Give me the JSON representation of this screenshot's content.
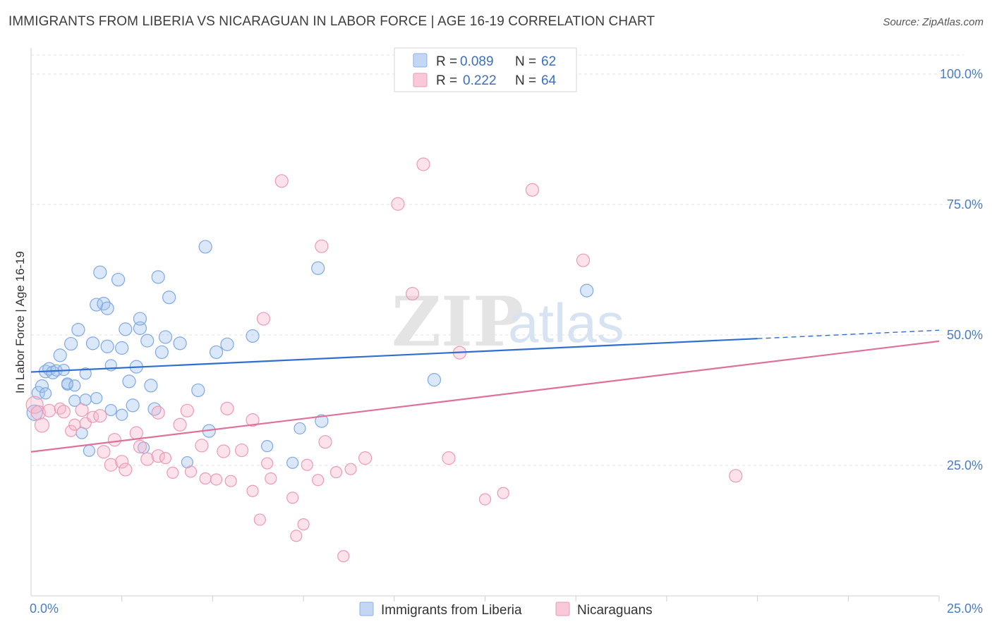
{
  "header": {
    "title": "IMMIGRANTS FROM LIBERIA VS NICARAGUAN IN LABOR FORCE | AGE 16-19 CORRELATION CHART",
    "source": "Source: ZipAtlas.com"
  },
  "watermark": {
    "zip": "ZIP",
    "atlas": "atlas"
  },
  "chart_data": {
    "type": "scatter",
    "title": "IMMIGRANTS FROM LIBERIA VS NICARAGUAN IN LABOR FORCE | AGE 16-19 CORRELATION CHART",
    "xlabel": "",
    "ylabel": "In Labor Force | Age 16-19",
    "xlim": [
      0,
      25
    ],
    "ylim": [
      0,
      105
    ],
    "x_tick_labels": [
      "0.0%",
      "25.0%"
    ],
    "y_ticks": [
      25,
      50,
      75,
      100
    ],
    "y_tick_labels": [
      "25.0%",
      "50.0%",
      "75.0%",
      "100.0%"
    ],
    "grid": true,
    "legend_position": "top-center",
    "colors": {
      "liberia": "#6b9be0",
      "nicaraguan": "#ea8fab",
      "liberia_line": "#2f6fd0",
      "nicaraguan_line": "#e0709a"
    },
    "stats": [
      {
        "r_label": "R =",
        "r_value": "0.089",
        "n_label": "N =",
        "n_value": "62"
      },
      {
        "r_label": "R =",
        "r_value": "0.222",
        "n_label": "N =",
        "n_value": "64"
      }
    ],
    "series": [
      {
        "name": "Immigrants from Liberia",
        "trend": {
          "x0": 0,
          "y0": 42.9,
          "x1": 20,
          "y1": 49.3,
          "x_dash_end": 25,
          "y_dash_end": 50.9
        },
        "points": [
          [
            0.1,
            35.1,
            11
          ],
          [
            0.2,
            38.9,
            9
          ],
          [
            0.3,
            40.2,
            9
          ],
          [
            0.4,
            38.8,
            8
          ],
          [
            0.4,
            43.0,
            9
          ],
          [
            0.5,
            43.5,
            9
          ],
          [
            0.6,
            42.8,
            9
          ],
          [
            0.7,
            43.2,
            8
          ],
          [
            0.8,
            46.1,
            9
          ],
          [
            0.9,
            43.3,
            8
          ],
          [
            1.0,
            40.5,
            8
          ],
          [
            1.0,
            40.7,
            8
          ],
          [
            1.1,
            48.3,
            9
          ],
          [
            1.2,
            40.3,
            8
          ],
          [
            1.2,
            37.4,
            8
          ],
          [
            1.3,
            51.0,
            9
          ],
          [
            1.4,
            31.2,
            8
          ],
          [
            1.5,
            42.6,
            8
          ],
          [
            1.5,
            37.6,
            8
          ],
          [
            1.6,
            27.8,
            8
          ],
          [
            1.7,
            48.4,
            9
          ],
          [
            1.8,
            37.9,
            8
          ],
          [
            1.8,
            55.8,
            9
          ],
          [
            1.9,
            62.0,
            9
          ],
          [
            2.0,
            56.0,
            9
          ],
          [
            2.1,
            55.1,
            9
          ],
          [
            2.1,
            47.8,
            9
          ],
          [
            2.2,
            35.6,
            8
          ],
          [
            2.2,
            44.2,
            8
          ],
          [
            2.4,
            60.6,
            9
          ],
          [
            2.5,
            34.7,
            8
          ],
          [
            2.5,
            47.5,
            9
          ],
          [
            2.6,
            51.1,
            9
          ],
          [
            2.7,
            41.1,
            9
          ],
          [
            2.8,
            36.5,
            9
          ],
          [
            2.9,
            43.9,
            9
          ],
          [
            3.0,
            51.3,
            9
          ],
          [
            3.0,
            53.1,
            9
          ],
          [
            3.1,
            28.4,
            8
          ],
          [
            3.2,
            48.9,
            9
          ],
          [
            3.3,
            40.3,
            9
          ],
          [
            3.4,
            35.8,
            9
          ],
          [
            3.5,
            61.1,
            9
          ],
          [
            3.6,
            46.7,
            9
          ],
          [
            3.7,
            49.6,
            9
          ],
          [
            3.8,
            57.2,
            9
          ],
          [
            4.1,
            48.4,
            9
          ],
          [
            4.3,
            25.6,
            8
          ],
          [
            4.6,
            39.4,
            9
          ],
          [
            4.8,
            66.9,
            9
          ],
          [
            4.9,
            31.6,
            9
          ],
          [
            5.1,
            46.7,
            9
          ],
          [
            5.4,
            48.2,
            9
          ],
          [
            6.1,
            49.8,
            9
          ],
          [
            6.5,
            28.7,
            8
          ],
          [
            7.2,
            25.5,
            8
          ],
          [
            7.4,
            32.1,
            8
          ],
          [
            7.9,
            62.8,
            9
          ],
          [
            8.0,
            33.5,
            9
          ],
          [
            11.1,
            41.4,
            9
          ],
          [
            15.3,
            58.5,
            9
          ]
        ]
      },
      {
        "name": "Nicaraguans",
        "trend": {
          "x0": 0,
          "y0": 27.6,
          "x1": 25,
          "y1": 48.8
        },
        "points": [
          [
            0.1,
            36.6,
            12
          ],
          [
            0.2,
            35.1,
            10
          ],
          [
            0.3,
            32.7,
            10
          ],
          [
            0.5,
            35.5,
            9
          ],
          [
            0.8,
            35.9,
            8
          ],
          [
            0.9,
            35.3,
            9
          ],
          [
            1.1,
            31.6,
            8
          ],
          [
            1.2,
            32.8,
            8
          ],
          [
            1.4,
            35.6,
            9
          ],
          [
            1.5,
            33.1,
            8
          ],
          [
            1.7,
            34.3,
            8
          ],
          [
            1.9,
            34.5,
            9
          ],
          [
            2.0,
            27.6,
            9
          ],
          [
            2.2,
            25.1,
            9
          ],
          [
            2.3,
            29.9,
            9
          ],
          [
            2.5,
            25.7,
            9
          ],
          [
            2.6,
            24.2,
            9
          ],
          [
            2.9,
            31.2,
            9
          ],
          [
            3.0,
            28.6,
            9
          ],
          [
            3.2,
            26.2,
            9
          ],
          [
            3.5,
            26.8,
            9
          ],
          [
            3.5,
            35.1,
            9
          ],
          [
            3.7,
            26.4,
            8
          ],
          [
            3.9,
            23.6,
            8
          ],
          [
            4.1,
            32.8,
            9
          ],
          [
            4.3,
            35.5,
            9
          ],
          [
            4.4,
            23.8,
            8
          ],
          [
            4.7,
            28.8,
            9
          ],
          [
            4.8,
            22.5,
            8
          ],
          [
            5.1,
            22.3,
            8
          ],
          [
            5.3,
            27.7,
            9
          ],
          [
            5.4,
            35.9,
            9
          ],
          [
            5.5,
            22.0,
            8
          ],
          [
            5.8,
            27.9,
            9
          ],
          [
            6.1,
            20.1,
            8
          ],
          [
            6.1,
            33.7,
            9
          ],
          [
            6.3,
            14.6,
            8
          ],
          [
            6.4,
            53.1,
            9
          ],
          [
            6.5,
            25.4,
            8
          ],
          [
            6.6,
            22.5,
            8
          ],
          [
            6.9,
            79.5,
            9
          ],
          [
            7.2,
            18.8,
            8
          ],
          [
            7.3,
            11.5,
            8
          ],
          [
            7.5,
            13.7,
            8
          ],
          [
            7.6,
            25.1,
            8
          ],
          [
            7.9,
            22.2,
            8
          ],
          [
            8.0,
            67.0,
            9
          ],
          [
            8.1,
            29.5,
            9
          ],
          [
            8.4,
            23.7,
            8
          ],
          [
            8.6,
            7.6,
            8
          ],
          [
            8.8,
            24.3,
            8
          ],
          [
            9.2,
            26.4,
            9
          ],
          [
            10.1,
            75.1,
            9
          ],
          [
            10.5,
            57.9,
            9
          ],
          [
            10.8,
            82.7,
            9
          ],
          [
            11.5,
            26.4,
            9
          ],
          [
            11.8,
            46.6,
            9
          ],
          [
            12.5,
            18.5,
            8
          ],
          [
            13.0,
            19.7,
            8
          ],
          [
            13.8,
            77.8,
            9
          ],
          [
            15.2,
            64.3,
            9
          ],
          [
            19.4,
            23.0,
            9
          ]
        ]
      }
    ]
  }
}
